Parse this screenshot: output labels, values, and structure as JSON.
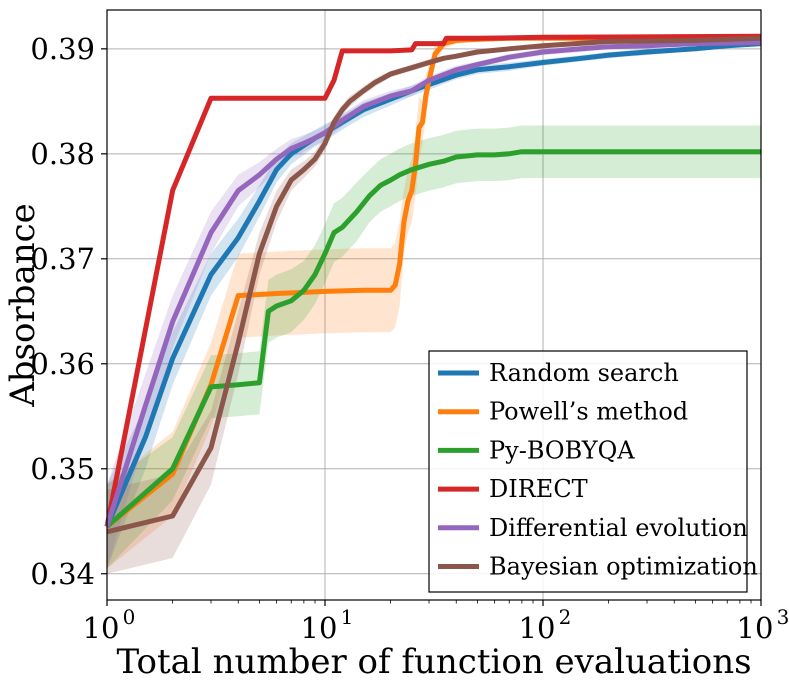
{
  "chart_data": {
    "type": "line",
    "xlabel": "Total number of function evaluations",
    "ylabel": "Absorbance",
    "xscale": "log",
    "xlim": [
      1,
      1000
    ],
    "ylim": [
      0.3375,
      0.3937
    ],
    "xticks": [
      1,
      10,
      100,
      1000
    ],
    "xtick_bases": [
      "10",
      "10",
      "10",
      "10"
    ],
    "xtick_exponents": [
      "0",
      "1",
      "2",
      "3"
    ],
    "yticks": [
      0.34,
      0.35,
      0.36,
      0.37,
      0.38,
      0.39
    ],
    "ytick_labels": [
      "0.34",
      "0.35",
      "0.36",
      "0.37",
      "0.38",
      "0.39"
    ],
    "grid": true,
    "legend_position": "bottom-right",
    "series": [
      {
        "name": "Random search",
        "color": "#1f77b4",
        "x": [
          1,
          1.5,
          2,
          3,
          4,
          5,
          6,
          7,
          8,
          9,
          10,
          12,
          15,
          20,
          25,
          30,
          40,
          50,
          70,
          100,
          150,
          200,
          300,
          500,
          700,
          1000
        ],
        "y": [
          0.3445,
          0.353,
          0.3605,
          0.3685,
          0.372,
          0.3755,
          0.3785,
          0.38,
          0.3808,
          0.3815,
          0.382,
          0.383,
          0.3842,
          0.3852,
          0.386,
          0.3866,
          0.3875,
          0.388,
          0.3883,
          0.3887,
          0.3891,
          0.3894,
          0.3897,
          0.39,
          0.3903,
          0.3905
        ],
        "band_half_width": [
          0.004,
          0.003,
          0.0025,
          0.002,
          0.0018,
          0.0015,
          0.0012,
          0.001,
          0.0009,
          0.0008,
          0.0008,
          0.0007,
          0.0007,
          0.0006,
          0.0005,
          0.0005,
          0.0004,
          0.0004,
          0.0004,
          0.0003,
          0.0003,
          0.0003,
          0.0003,
          0.0002,
          0.0002,
          0.0002
        ]
      },
      {
        "name": "Powell’s method",
        "color": "#ff7f0e",
        "x": [
          1,
          2,
          3,
          4,
          5,
          6,
          8,
          10,
          15,
          20,
          21,
          22,
          23,
          24,
          25,
          26,
          27,
          28,
          29,
          30,
          32,
          35,
          40,
          50,
          70,
          100,
          200,
          500,
          1000
        ],
        "y": [
          0.3445,
          0.3495,
          0.358,
          0.3665,
          0.3666,
          0.3667,
          0.3668,
          0.3669,
          0.367,
          0.367,
          0.3675,
          0.3695,
          0.3735,
          0.3755,
          0.3765,
          0.379,
          0.3825,
          0.383,
          0.3855,
          0.387,
          0.3895,
          0.3905,
          0.3908,
          0.3909,
          0.391,
          0.391,
          0.391,
          0.391,
          0.391
        ],
        "band_half_width": [
          0.004,
          0.004,
          0.004,
          0.004,
          0.004,
          0.004,
          0.004,
          0.004,
          0.004,
          0.004,
          0.004,
          0.004,
          0.003,
          0.003,
          0.003,
          0.003,
          0.003,
          0.002,
          0.002,
          0.0015,
          0.001,
          0.0005,
          0.0003,
          0.0002,
          0.0002,
          0.0002,
          0.0002,
          0.0002,
          0.0002
        ]
      },
      {
        "name": "Py-BOBYQA",
        "color": "#2ca02c",
        "x": [
          1,
          2,
          3,
          4,
          5,
          5.5,
          6,
          7,
          8,
          9,
          10,
          11,
          12,
          14,
          16,
          18,
          20,
          22,
          25,
          30,
          35,
          40,
          50,
          60,
          70,
          80,
          100,
          200,
          500,
          1000
        ],
        "y": [
          0.3445,
          0.35,
          0.3578,
          0.358,
          0.3582,
          0.365,
          0.3655,
          0.366,
          0.367,
          0.3685,
          0.3705,
          0.3725,
          0.373,
          0.3745,
          0.376,
          0.377,
          0.3775,
          0.378,
          0.3785,
          0.379,
          0.3793,
          0.3797,
          0.3799,
          0.3799,
          0.38,
          0.3802,
          0.3802,
          0.3802,
          0.3802,
          0.3802
        ],
        "band_half_width": [
          0.004,
          0.003,
          0.003,
          0.003,
          0.003,
          0.003,
          0.003,
          0.003,
          0.0028,
          0.0028,
          0.0028,
          0.0028,
          0.0028,
          0.0028,
          0.0025,
          0.0025,
          0.0025,
          0.0025,
          0.0025,
          0.0025,
          0.0025,
          0.0025,
          0.0025,
          0.0025,
          0.0025,
          0.0025,
          0.0025,
          0.0025,
          0.0025,
          0.0025
        ]
      },
      {
        "name": "DIRECT",
        "color": "#d62728",
        "x": [
          1,
          2,
          3,
          10,
          11,
          12,
          20,
          25,
          26,
          35,
          36,
          50,
          100,
          1000
        ],
        "y": [
          0.3445,
          0.3765,
          0.3853,
          0.3853,
          0.387,
          0.3898,
          0.3898,
          0.3899,
          0.3905,
          0.3905,
          0.391,
          0.391,
          0.3911,
          0.3912
        ],
        "band_half_width": [
          0.0005,
          0.0003,
          0.0002,
          0.0002,
          0.0002,
          0.0002,
          0.0002,
          0.0002,
          0.0002,
          0.0002,
          0.0002,
          0.0002,
          0.0002,
          0.0002
        ]
      },
      {
        "name": "Differential evolution",
        "color": "#9467bd",
        "x": [
          1,
          1.5,
          2,
          3,
          4,
          5,
          6,
          7,
          8,
          9,
          10,
          12,
          15,
          20,
          25,
          30,
          40,
          50,
          70,
          100,
          150,
          200,
          300,
          500,
          1000
        ],
        "y": [
          0.3445,
          0.356,
          0.364,
          0.3725,
          0.3765,
          0.378,
          0.3795,
          0.3805,
          0.381,
          0.3815,
          0.382,
          0.3832,
          0.3845,
          0.3855,
          0.386,
          0.387,
          0.388,
          0.3885,
          0.3892,
          0.3897,
          0.39,
          0.3902,
          0.3903,
          0.3905,
          0.3906
        ],
        "band_half_width": [
          0.004,
          0.003,
          0.0025,
          0.002,
          0.0015,
          0.0012,
          0.001,
          0.0009,
          0.0008,
          0.0007,
          0.0007,
          0.0006,
          0.0006,
          0.0005,
          0.0005,
          0.0004,
          0.0004,
          0.0003,
          0.0003,
          0.0003,
          0.0003,
          0.0002,
          0.0002,
          0.0002,
          0.0002
        ]
      },
      {
        "name": "Bayesian optimization",
        "color": "#8c564b",
        "x": [
          1,
          2,
          3,
          4,
          5,
          6,
          7,
          8,
          9,
          10,
          11,
          12,
          13,
          15,
          17,
          20,
          25,
          30,
          35,
          40,
          50,
          70,
          100,
          200,
          500,
          1000
        ],
        "y": [
          0.344,
          0.3455,
          0.352,
          0.362,
          0.3705,
          0.375,
          0.3775,
          0.3785,
          0.3795,
          0.381,
          0.383,
          0.3842,
          0.385,
          0.386,
          0.3868,
          0.3876,
          0.3882,
          0.3887,
          0.3891,
          0.3893,
          0.3897,
          0.39,
          0.3903,
          0.3907,
          0.3908,
          0.391
        ],
        "band_half_width": [
          0.004,
          0.004,
          0.0035,
          0.003,
          0.002,
          0.0015,
          0.001,
          0.0008,
          0.0007,
          0.0007,
          0.0006,
          0.0005,
          0.0005,
          0.0004,
          0.0004,
          0.0003,
          0.0003,
          0.0003,
          0.0002,
          0.0002,
          0.0002,
          0.0002,
          0.0002,
          0.0002,
          0.0002,
          0.0002
        ]
      }
    ]
  }
}
